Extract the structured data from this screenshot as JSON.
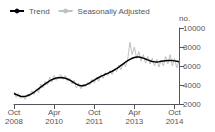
{
  "chart_data": {
    "type": "line",
    "ylabel": "no.",
    "categories": [
      "Oct\n2008",
      null,
      null,
      null,
      null,
      null,
      null,
      null,
      null,
      null,
      null,
      null,
      null,
      null,
      null,
      null,
      null,
      null,
      "Apr\n2010",
      null,
      null,
      null,
      null,
      null,
      null,
      null,
      null,
      null,
      null,
      null,
      null,
      null,
      null,
      null,
      null,
      null,
      "Oct\n2011",
      null,
      null,
      null,
      null,
      null,
      null,
      null,
      null,
      null,
      null,
      null,
      null,
      null,
      null,
      null,
      null,
      null,
      "Apr\n2013",
      null,
      null,
      null,
      null,
      null,
      null,
      null,
      null,
      null,
      null,
      null,
      null,
      null,
      null,
      null,
      null,
      null,
      "Oct\n2014",
      null,
      null
    ],
    "series": [
      {
        "name": "Seasonally Adjusted",
        "color": "#c0c0c0",
        "values": [
          3300,
          2700,
          3100,
          2600,
          2800,
          2500,
          3000,
          2800,
          3400,
          3000,
          3600,
          3200,
          4100,
          3700,
          4400,
          4000,
          4800,
          4300,
          5000,
          4500,
          4900,
          5100,
          4600,
          5000,
          4400,
          4700,
          4100,
          4500,
          3700,
          4200,
          3600,
          4100,
          3800,
          4300,
          4000,
          4600,
          4200,
          4800,
          4400,
          5100,
          4700,
          5300,
          5000,
          5500,
          5100,
          5700,
          5400,
          6100,
          5600,
          6300,
          5900,
          6700,
          8500,
          7200,
          8000,
          6800,
          7500,
          6500,
          7200,
          6300,
          7000,
          6200,
          6800,
          6000,
          6700,
          5900,
          6600,
          6000,
          7000,
          6200,
          7200,
          6000,
          6800,
          5800,
          6500
        ]
      },
      {
        "name": "Trend",
        "color": "#000000",
        "values": [
          3100,
          3000,
          2900,
          2820,
          2780,
          2800,
          2870,
          2970,
          3100,
          3250,
          3420,
          3600,
          3780,
          3950,
          4120,
          4280,
          4430,
          4560,
          4660,
          4730,
          4770,
          4780,
          4760,
          4710,
          4630,
          4520,
          4380,
          4230,
          4090,
          3980,
          3920,
          3930,
          3990,
          4090,
          4220,
          4370,
          4520,
          4660,
          4790,
          4910,
          5020,
          5130,
          5230,
          5340,
          5450,
          5580,
          5730,
          5890,
          6060,
          6230,
          6400,
          6560,
          6700,
          6820,
          6900,
          6940,
          6940,
          6900,
          6830,
          6740,
          6640,
          6550,
          6480,
          6440,
          6430,
          6450,
          6490,
          6530,
          6560,
          6580,
          6580,
          6570,
          6540,
          6500,
          6450
        ]
      }
    ],
    "ylim": [
      2000,
      10000
    ],
    "yticks": [
      2000,
      4000,
      6000,
      8000,
      10000
    ],
    "grid": false,
    "legend": "upper left"
  }
}
